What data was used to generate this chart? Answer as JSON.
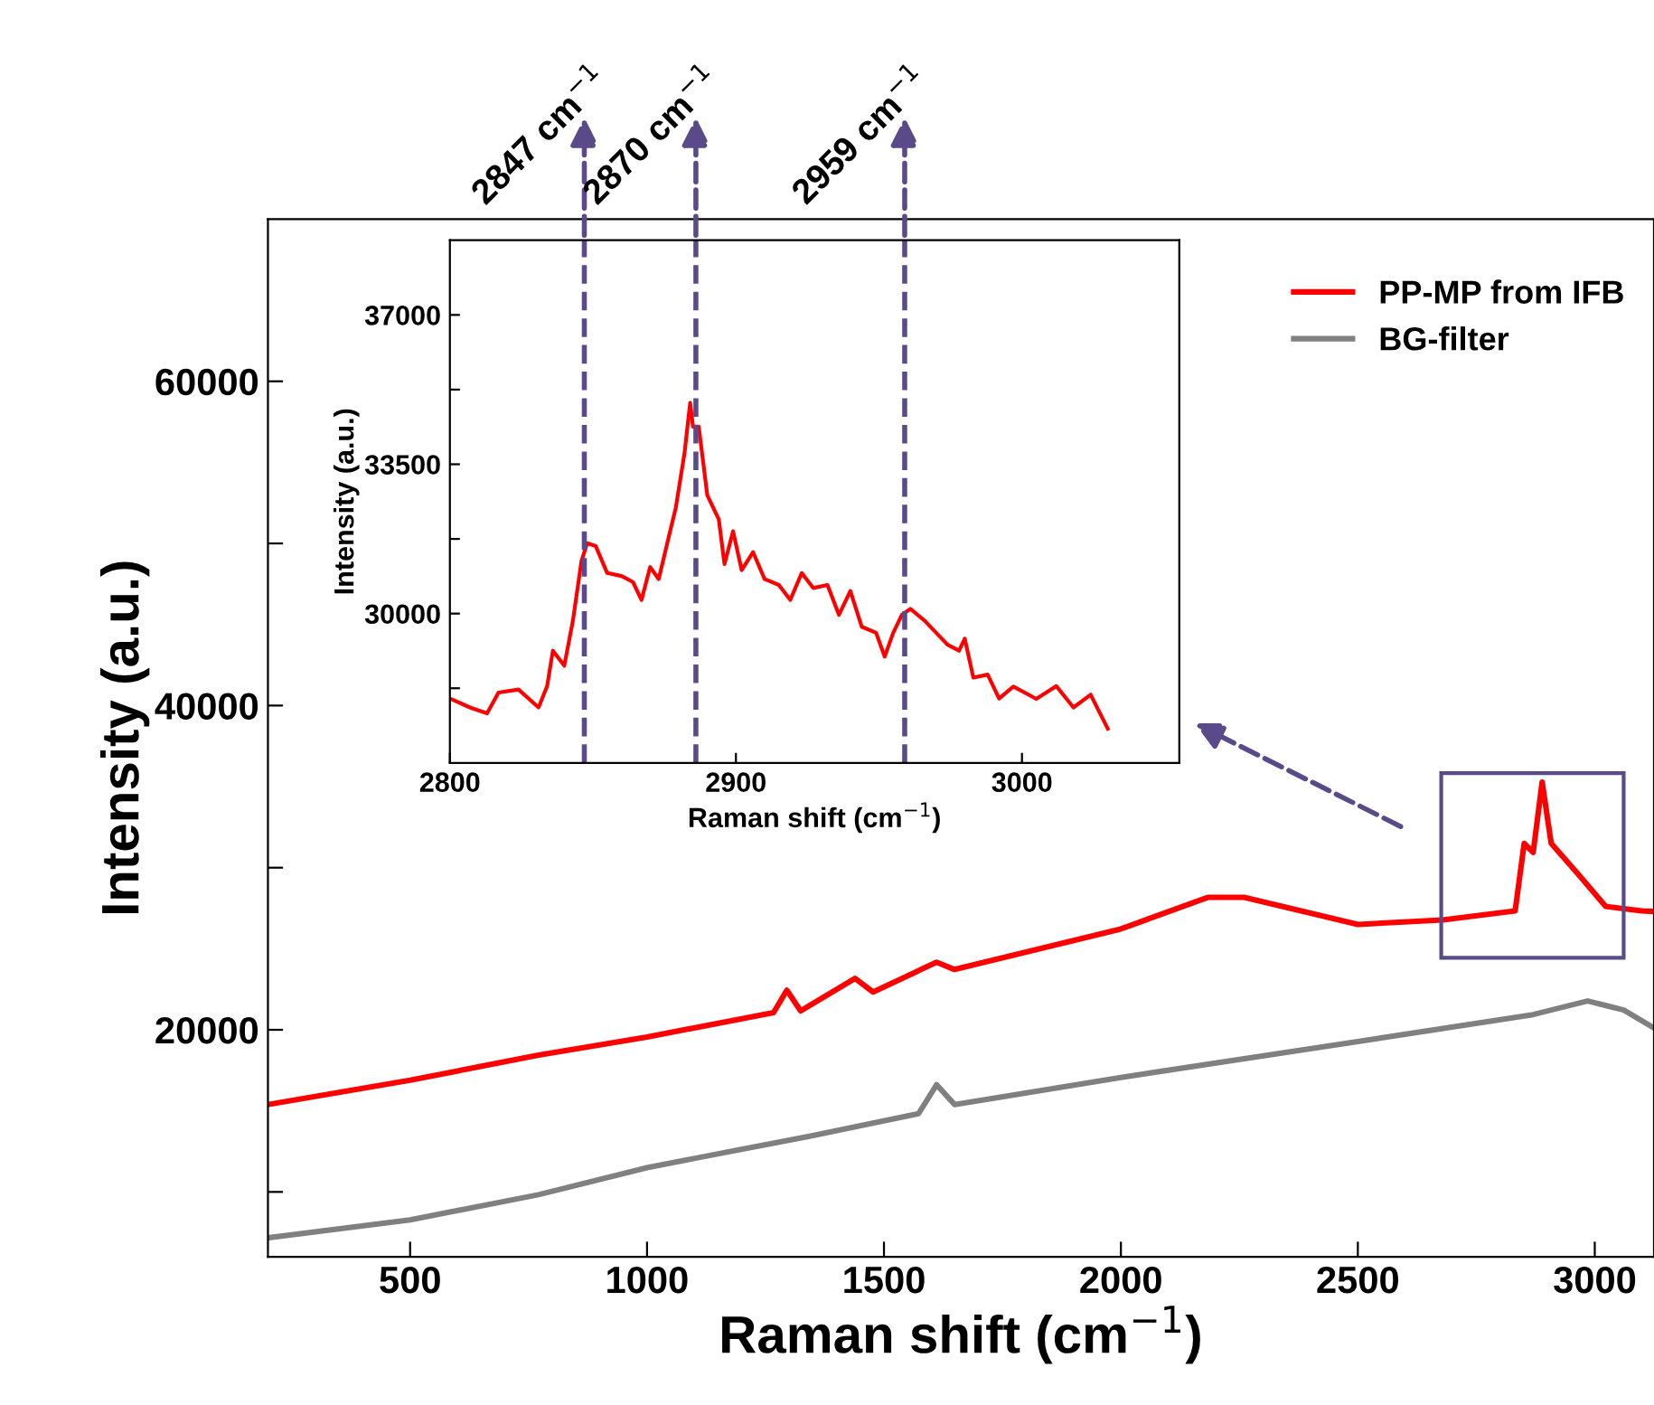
{
  "chart_data": [
    {
      "type": "line",
      "xlabel": "Raman shift (cm$^{−1}$)",
      "ylabel": "Intensity (a.u.)",
      "xlim": [
        200,
        3125
      ],
      "ylim": [
        6000,
        70000
      ],
      "xticks": [
        500,
        1000,
        1500,
        2000,
        2500,
        3000
      ],
      "yticks": [
        {
          "value": 10000,
          "label": null
        },
        20000,
        {
          "value": 30000,
          "label": null
        },
        40000,
        {
          "value": 50000,
          "label": null
        },
        60000
      ],
      "legend": "top right",
      "marker": "none",
      "line_style": "solid",
      "grid": false,
      "series": [
        {
          "name": "PP-MP from IFB",
          "color": "#ff0000",
          "x": [
            200,
            500,
            771,
            1000,
            1267,
            1295,
            1324,
            1439,
            1477,
            1611,
            1649,
            2000,
            2183,
            2260,
            2500,
            2679,
            2832,
            2851,
            2870,
            2889,
            2908,
            2966,
            3023,
            3099,
            3125
          ],
          "values": [
            15390,
            16890,
            18440,
            19560,
            21060,
            22440,
            21170,
            23170,
            22330,
            24170,
            23720,
            26220,
            28170,
            28170,
            26500,
            26780,
            27330,
            31500,
            30940,
            35280,
            31500,
            29560,
            27610,
            27330,
            27300
          ]
        },
        {
          "name": "BG-filter",
          "color": "#808080",
          "x": [
            200,
            500,
            771,
            1000,
            1343,
            1573,
            1611,
            1649,
            2000,
            2500,
            2870,
            2985,
            3061,
            3125
          ],
          "values": [
            7170,
            8280,
            9830,
            11500,
            13440,
            14830,
            16610,
            15390,
            17060,
            19280,
            20940,
            21780,
            21220,
            20110
          ]
        }
      ]
    },
    {
      "type": "line",
      "xlabel": "Raman shift (cm$^{−1}$)",
      "ylabel": "Intensity (a.u.)",
      "xlim": [
        2800,
        3055
      ],
      "ylim": [
        26500,
        38750
      ],
      "xticks": [
        2800,
        2900,
        3000
      ],
      "yticks": [
        {
          "value": 28250,
          "label": null
        },
        30000,
        {
          "value": 31750,
          "label": null
        },
        33500,
        {
          "value": 35250,
          "label": null
        },
        37000
      ],
      "marker": "none",
      "line_style": "solid",
      "grid": false,
      "series": [
        {
          "color": "#ff0000",
          "x": [
            2800,
            2807,
            2813,
            2817,
            2824,
            2831,
            2834,
            2836,
            2840,
            2843,
            2846,
            2848,
            2851,
            2855,
            2860,
            2864,
            2867,
            2870,
            2873,
            2876,
            2879,
            2882,
            2884,
            2885,
            2887,
            2890,
            2894,
            2896,
            2899,
            2902,
            2906,
            2910,
            2915,
            2919,
            2923,
            2927,
            2932,
            2936,
            2940,
            2944,
            2949,
            2952,
            2955,
            2958,
            2961,
            2966,
            2970,
            2974,
            2978,
            2980,
            2983,
            2988,
            2992,
            2997,
            3005,
            3012,
            3018,
            3024,
            3030
          ],
          "values": [
            28010,
            27800,
            27660,
            28150,
            28220,
            27800,
            28300,
            29130,
            28780,
            29830,
            31230,
            31650,
            31580,
            30950,
            30880,
            30740,
            30320,
            31090,
            30810,
            31650,
            32490,
            33750,
            34940,
            34380,
            34380,
            32770,
            32210,
            31160,
            31930,
            31020,
            31440,
            30810,
            30670,
            30320,
            30950,
            30600,
            30670,
            29970,
            30530,
            29690,
            29550,
            28990,
            29550,
            29970,
            30110,
            29830,
            29550,
            29270,
            29130,
            29410,
            28500,
            28570,
            28010,
            28290,
            28000,
            28300,
            27800,
            28100,
            27300
          ]
        }
      ],
      "ref_lines": [
        {
          "axis": "x",
          "value": 2847,
          "label": "2847 cm$^{−1}$",
          "color": "#5b4a8a",
          "line_style": "dashed"
        },
        {
          "axis": "x",
          "value": 2886,
          "label": "2870 cm$^{−1}$",
          "color": "#5b4a8a",
          "line_style": "dashed"
        },
        {
          "axis": "x",
          "value": 2959,
          "label": "2959 cm$^{−1}$",
          "color": "#5b4a8a",
          "line_style": "dashed"
        }
      ]
    }
  ]
}
